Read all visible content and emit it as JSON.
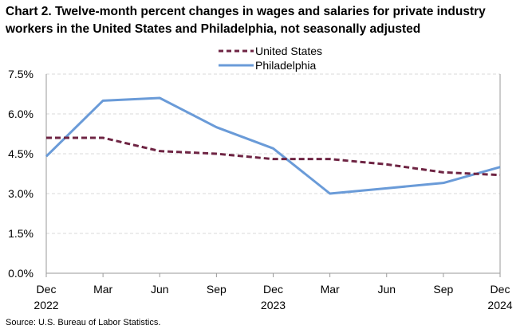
{
  "colors": {
    "us": "#6e2443",
    "phila": "#6a9bd8",
    "grid": "#d9d9d9",
    "axis": "#9a9a9a"
  },
  "chart_data": {
    "type": "line",
    "title": "Chart 2. Twelve-month percent changes in wages and salaries for private industry workers in the United States and Philadelphia, not seasonally adjusted",
    "x_ticks": [
      {
        "month": "Dec",
        "year": "2022"
      },
      {
        "month": "Mar",
        "year": ""
      },
      {
        "month": "Jun",
        "year": ""
      },
      {
        "month": "Sep",
        "year": ""
      },
      {
        "month": "Dec",
        "year": "2023"
      },
      {
        "month": "Mar",
        "year": ""
      },
      {
        "month": "Jun",
        "year": ""
      },
      {
        "month": "Sep",
        "year": ""
      },
      {
        "month": "Dec",
        "year": "2024"
      }
    ],
    "y_ticks": [
      "7.5%",
      "6.0%",
      "4.5%",
      "3.0%",
      "1.5%",
      "0.0%"
    ],
    "ylim": [
      0,
      7.5
    ],
    "y_tick_values": [
      7.5,
      6.0,
      4.5,
      3.0,
      1.5,
      0.0
    ],
    "series": [
      {
        "name": "United States",
        "style": "dashed",
        "values": [
          5.1,
          5.1,
          4.6,
          4.5,
          4.3,
          4.3,
          4.1,
          3.8,
          3.7
        ]
      },
      {
        "name": "Philadelphia",
        "style": "solid",
        "values": [
          4.4,
          6.5,
          6.6,
          5.5,
          4.7,
          3.0,
          3.2,
          3.4,
          4.0
        ]
      }
    ],
    "legend_position": "top-center",
    "grid": true
  },
  "source": "Source: U.S. Bureau of Labor Statistics."
}
